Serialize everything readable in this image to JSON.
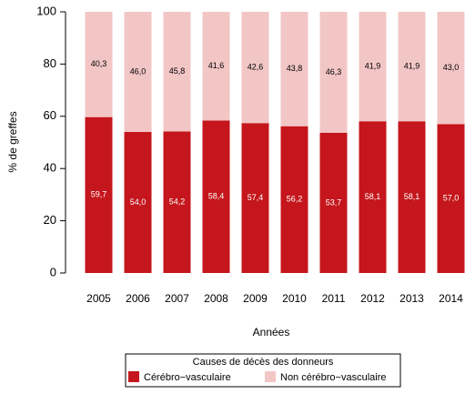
{
  "chart_data": {
    "type": "stacked_bar",
    "y_label": "% de greffes",
    "x_label": "Années",
    "categories": [
      "2005",
      "2006",
      "2007",
      "2008",
      "2009",
      "2010",
      "2011",
      "2012",
      "2013",
      "2014"
    ],
    "series": [
      {
        "name": "Cérébro−vasculaire",
        "color": "#c4161c",
        "values": [
          59.7,
          54.0,
          54.2,
          58.4,
          57.4,
          56.2,
          53.7,
          58.1,
          58.1,
          57.0
        ],
        "value_labels": [
          "59,7",
          "54,0",
          "54,2",
          "58,4",
          "57,4",
          "56,2",
          "53,7",
          "58,1",
          "58,1",
          "57,0"
        ]
      },
      {
        "name": "Non cérébro−vasculaire",
        "color": "#f3c6c6",
        "values": [
          40.3,
          46.0,
          45.8,
          41.6,
          42.6,
          43.8,
          46.3,
          41.9,
          41.9,
          43.0
        ],
        "value_labels": [
          "40,3",
          "46,0",
          "45,8",
          "41,6",
          "42,6",
          "43,8",
          "46,3",
          "41,9",
          "41,9",
          "43,0"
        ]
      }
    ],
    "ylim": [
      0,
      100
    ],
    "yticks": [
      0,
      20,
      40,
      60,
      80,
      100
    ],
    "legend_title": "Causes de décès des donneurs"
  }
}
